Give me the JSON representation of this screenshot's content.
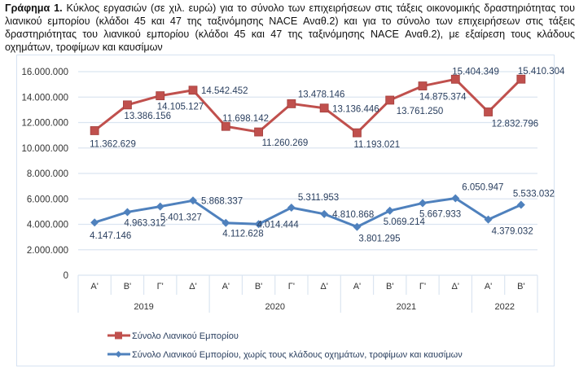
{
  "caption": {
    "bold": "Γράφημα 1.",
    "text": " Κύκλος εργασιών (σε χιλ. ευρώ) για το σύνολο των επιχειρήσεων στις τάξεις οικονομικής δραστηριότητας του λιανικού εμπορίου (κλάδοι 45 και 47 της ταξινόμησης NACE Αναθ.2) και για το σύνολο των επιχειρήσεων στις τάξεις δραστηριότητας του λιανικού εμπορίου (κλάδοι 45 και 47 της ταξινόμησης NACE Αναθ.2), με εξαίρεση τους κλάδους οχημάτων, τροφίμων και καυσίμων"
  },
  "chart_data": {
    "type": "line",
    "title": "",
    "xlabel": "",
    "ylabel": "",
    "ylim": [
      0,
      16000000
    ],
    "yticks": [
      0,
      2000000,
      4000000,
      6000000,
      8000000,
      10000000,
      12000000,
      14000000,
      16000000
    ],
    "ytick_labels": [
      "0",
      "2.000.000",
      "4.000.000",
      "6.000.000",
      "8.000.000",
      "10.000.000",
      "12.000.000",
      "14.000.000",
      "16.000.000"
    ],
    "grid": true,
    "legend_position": "bottom",
    "categories": [
      "Α'",
      "Β'",
      "Γ'",
      "Δ'",
      "Α'",
      "Β'",
      "Γ'",
      "Δ'",
      "Α'",
      "Β'",
      "Γ'",
      "Δ'",
      "Α'",
      "Β'"
    ],
    "year_groups": [
      {
        "label": "2019",
        "count": 4
      },
      {
        "label": "2020",
        "count": 4
      },
      {
        "label": "2021",
        "count": 4
      },
      {
        "label": "2022",
        "count": 2
      }
    ],
    "series": [
      {
        "name": "Σύνολο Λιανικού Εμπορίου",
        "color": "#c0504d",
        "marker": "square",
        "values": [
          11362629,
          13386156,
          14105127,
          14542452,
          11698142,
          11260269,
          13478146,
          13136446,
          11193021,
          13761250,
          14875374,
          15404349,
          12832796,
          15410304
        ],
        "labels": [
          "11.362.629",
          "13.386.156",
          "14.105.127",
          "14.542.452",
          "11.698.142",
          "11.260.269",
          "13.478.146",
          "13.136.446",
          "11.193.021",
          "13.761.250",
          "14.875.374",
          "15.404.349",
          "12.832.796",
          "15.410.304"
        ]
      },
      {
        "name": "Σύνολο Λιανικού Εμπορίου, χωρίς τους κλάδους οχημάτων, τροφίμων και καυσίμων",
        "color": "#4f81bd",
        "marker": "diamond",
        "values": [
          4147146,
          4963312,
          5401327,
          5868337,
          4112628,
          4014444,
          5311953,
          4810868,
          3801295,
          5069214,
          5667933,
          6050947,
          4379032,
          5533032
        ],
        "labels": [
          "4.147.146",
          "4.963.312",
          "5.401.327",
          "5.868.337",
          "4.112.628",
          "4.014.444",
          "5.311.953",
          "4.810.868",
          "3.801.295",
          "5.069.214",
          "5.667.933",
          "6.050.947",
          "4.379.032",
          "5.533.032"
        ]
      }
    ]
  }
}
